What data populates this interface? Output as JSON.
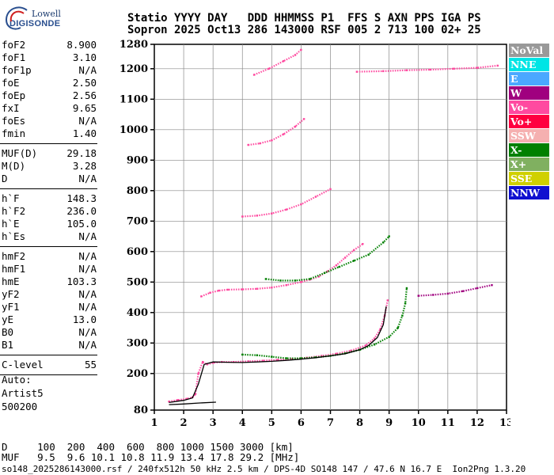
{
  "logo": {
    "line1": "Lowell",
    "line2": "DIGISONDE"
  },
  "header": {
    "line1": "Statio YYYY DAY   DDD HHMMSS P1  FFS S AXN PPS IGA PS",
    "line2": "Sopron 2025 Oct13 286 143000 RSF 005 2 713 100 02+ 25"
  },
  "params": {
    "group1": [
      {
        "label": "foF2",
        "value": "8.900"
      },
      {
        "label": "foF1",
        "value": "3.10"
      },
      {
        "label": "foF1p",
        "value": "N/A"
      },
      {
        "label": "foE",
        "value": "2.50"
      },
      {
        "label": "foEp",
        "value": "2.56"
      },
      {
        "label": "fxI",
        "value": "9.65"
      },
      {
        "label": "foEs",
        "value": "N/A"
      },
      {
        "label": "fmin",
        "value": "1.40"
      }
    ],
    "group2": [
      {
        "label": "MUF(D)",
        "value": "29.18"
      },
      {
        "label": "M(D)",
        "value": "3.28"
      },
      {
        "label": "D",
        "value": "N/A"
      }
    ],
    "group3": [
      {
        "label": "h`F",
        "value": "148.3"
      },
      {
        "label": "h`F2",
        "value": "236.0"
      },
      {
        "label": "h`E",
        "value": "105.0"
      },
      {
        "label": "h`Es",
        "value": "N/A"
      }
    ],
    "group4": [
      {
        "label": "hmF2",
        "value": "N/A"
      },
      {
        "label": "hmF1",
        "value": "N/A"
      },
      {
        "label": "hmE",
        "value": "103.3"
      },
      {
        "label": "yF2",
        "value": "N/A"
      },
      {
        "label": "yF1",
        "value": "N/A"
      },
      {
        "label": "yE",
        "value": "13.0"
      },
      {
        "label": "B0",
        "value": "N/A"
      },
      {
        "label": "B1",
        "value": "N/A"
      }
    ],
    "group5": [
      {
        "label": "C-level",
        "value": "55"
      }
    ]
  },
  "auto_label": "Auto:",
  "artist": "Artist5",
  "artist_version": "500200",
  "legend": [
    {
      "label": "NoVal",
      "color": "#999999"
    },
    {
      "label": "NNE",
      "color": "#00e5e5"
    },
    {
      "label": "E",
      "color": "#4aa8ff"
    },
    {
      "label": "W",
      "color": "#a0007f"
    },
    {
      "label": "Vo-",
      "color": "#ff4aa0"
    },
    {
      "label": "Vo+",
      "color": "#ff0040"
    },
    {
      "label": "SSW",
      "color": "#f5b0b0"
    },
    {
      "label": "X-",
      "color": "#008000"
    },
    {
      "label": "X+",
      "color": "#80b060"
    },
    {
      "label": "SSE",
      "color": "#d0d000"
    },
    {
      "label": "NNW",
      "color": "#1010d0"
    }
  ],
  "bottom": {
    "d_row": "D     100  200  400  600  800 1000 1500 3000 [km]",
    "muf_row": "MUF   9.5  9.6 10.1 10.8 11.9 13.4 17.8 29.2 [MHz]",
    "footer": "so148_2025286143000.rsf / 240fx512h 50 kHz 2.5 km / DPS-4D SO148 147 / 47.6 N 16.7 E  Ion2Png 1.3.20"
  },
  "chart_data": {
    "type": "scatter",
    "xlim": [
      1,
      13
    ],
    "ylim": [
      80,
      1280
    ],
    "x_ticks": [
      1,
      2,
      3,
      4,
      5,
      6,
      7,
      8,
      9,
      10,
      11,
      12,
      13
    ],
    "y_ticks": [
      80,
      200,
      300,
      400,
      500,
      600,
      700,
      800,
      900,
      1000,
      1100,
      1200,
      1280
    ],
    "grid": true,
    "series": [
      {
        "color": "#ff4aa0",
        "style": "dots",
        "points": [
          [
            1.5,
            108
          ],
          [
            1.8,
            113
          ],
          [
            2.1,
            117
          ],
          [
            2.3,
            122
          ],
          [
            2.4,
            132
          ],
          [
            2.5,
            200
          ],
          [
            2.65,
            238
          ],
          [
            2.8,
            230
          ],
          [
            3.0,
            235
          ],
          [
            3.3,
            238
          ],
          [
            3.7,
            238
          ],
          [
            4.2,
            240
          ],
          [
            4.7,
            242
          ],
          [
            5.2,
            245
          ],
          [
            5.7,
            248
          ],
          [
            6.2,
            252
          ],
          [
            6.7,
            258
          ],
          [
            7.2,
            265
          ],
          [
            7.7,
            275
          ],
          [
            8.2,
            292
          ],
          [
            8.5,
            315
          ],
          [
            8.7,
            345
          ],
          [
            8.85,
            390
          ],
          [
            8.95,
            440
          ]
        ]
      },
      {
        "color": "#ff4aa0",
        "style": "dots",
        "points": [
          [
            2.6,
            453
          ],
          [
            2.9,
            465
          ],
          [
            3.2,
            472
          ],
          [
            3.5,
            475
          ],
          [
            4.0,
            476
          ],
          [
            4.5,
            478
          ],
          [
            5.0,
            482
          ],
          [
            5.5,
            490
          ],
          [
            6.0,
            500
          ],
          [
            6.3,
            508
          ],
          [
            6.6,
            518
          ],
          [
            6.9,
            535
          ],
          [
            7.2,
            555
          ],
          [
            7.5,
            580
          ],
          [
            7.8,
            605
          ],
          [
            8.1,
            625
          ]
        ]
      },
      {
        "color": "#ff4aa0",
        "style": "dots",
        "points": [
          [
            4.0,
            715
          ],
          [
            4.5,
            718
          ],
          [
            5.0,
            725
          ],
          [
            5.5,
            738
          ],
          [
            6.0,
            755
          ],
          [
            6.5,
            780
          ],
          [
            7.0,
            805
          ]
        ]
      },
      {
        "color": "#ff4aa0",
        "style": "dots",
        "points": [
          [
            4.2,
            950
          ],
          [
            4.6,
            955
          ],
          [
            5.0,
            965
          ],
          [
            5.4,
            985
          ],
          [
            5.8,
            1010
          ],
          [
            6.1,
            1035
          ]
        ]
      },
      {
        "color": "#ff4aa0",
        "style": "dots",
        "points": [
          [
            4.4,
            1180
          ],
          [
            4.9,
            1200
          ],
          [
            5.4,
            1225
          ],
          [
            5.8,
            1245
          ],
          [
            6.0,
            1262
          ]
        ]
      },
      {
        "color": "#ff4aa0",
        "style": "dots",
        "points": [
          [
            7.9,
            1190
          ],
          [
            8.8,
            1192
          ],
          [
            9.6,
            1195
          ],
          [
            10.4,
            1197
          ],
          [
            11.2,
            1200
          ],
          [
            12.0,
            1203
          ],
          [
            12.7,
            1210
          ]
        ]
      },
      {
        "color": "#008000",
        "style": "dots",
        "points": [
          [
            4.0,
            262
          ],
          [
            4.5,
            260
          ],
          [
            5.0,
            255
          ],
          [
            5.5,
            250
          ],
          [
            6.0,
            250
          ],
          [
            6.5,
            253
          ],
          [
            7.0,
            258
          ],
          [
            7.5,
            266
          ],
          [
            8.0,
            278
          ],
          [
            8.5,
            295
          ],
          [
            9.0,
            320
          ],
          [
            9.3,
            350
          ],
          [
            9.45,
            390
          ],
          [
            9.55,
            430
          ],
          [
            9.6,
            480
          ]
        ]
      },
      {
        "color": "#008000",
        "style": "dots",
        "points": [
          [
            4.8,
            510
          ],
          [
            5.3,
            505
          ],
          [
            5.8,
            505
          ],
          [
            6.3,
            510
          ],
          [
            6.8,
            530
          ],
          [
            7.3,
            550
          ],
          [
            7.8,
            570
          ],
          [
            8.3,
            590
          ],
          [
            8.8,
            630
          ],
          [
            9.0,
            650
          ]
        ]
      },
      {
        "color": "#a0007f",
        "style": "dots",
        "points": [
          [
            10.0,
            455
          ],
          [
            10.5,
            458
          ],
          [
            11.0,
            462
          ],
          [
            11.5,
            470
          ],
          [
            12.0,
            480
          ],
          [
            12.5,
            490
          ]
        ]
      },
      {
        "color": "#000000",
        "style": "line",
        "points": [
          [
            1.5,
            105
          ],
          [
            2.0,
            112
          ],
          [
            2.3,
            120
          ],
          [
            2.5,
            165
          ],
          [
            2.7,
            230
          ],
          [
            3.0,
            238
          ],
          [
            3.5,
            237
          ],
          [
            4.0,
            236
          ],
          [
            4.5,
            238
          ],
          [
            5.0,
            240
          ],
          [
            5.5,
            243
          ],
          [
            6.0,
            247
          ],
          [
            6.5,
            252
          ],
          [
            7.0,
            258
          ],
          [
            7.5,
            265
          ],
          [
            8.0,
            278
          ],
          [
            8.3,
            292
          ],
          [
            8.6,
            318
          ],
          [
            8.8,
            360
          ],
          [
            8.9,
            420
          ]
        ]
      },
      {
        "color": "#000000",
        "style": "line",
        "points": [
          [
            1.5,
            98
          ],
          [
            2.0,
            100
          ],
          [
            2.5,
            103
          ],
          [
            3.1,
            106
          ]
        ]
      }
    ]
  }
}
